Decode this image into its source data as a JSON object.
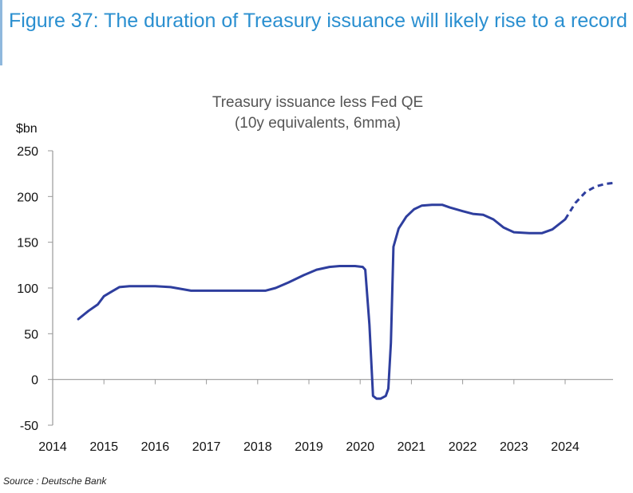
{
  "header": {
    "title": "Figure 37: The duration of Treasury issuance will likely rise to a record"
  },
  "chart_data": {
    "type": "line",
    "title_lines": [
      "Treasury issuance less Fed QE",
      "(10y equivalents, 6mma)"
    ],
    "ylabel": "$bn",
    "xlabel": "",
    "ylim": [
      -50,
      250
    ],
    "yticks": [
      250,
      200,
      150,
      100,
      50,
      0,
      -50
    ],
    "xlim": [
      2014,
      2025.05
    ],
    "xticks": [
      2014,
      2015,
      2016,
      2017,
      2018,
      2019,
      2020,
      2021,
      2022,
      2023,
      2024
    ],
    "grid": false,
    "series": [
      {
        "name": "Treasury issuance less Fed QE",
        "style": "solid",
        "color": "#2e3e9e",
        "points": [
          [
            2014.5,
            66
          ],
          [
            2014.7,
            75
          ],
          [
            2014.88,
            82
          ],
          [
            2015.0,
            91
          ],
          [
            2015.15,
            96
          ],
          [
            2015.3,
            101
          ],
          [
            2015.5,
            102
          ],
          [
            2016.0,
            102
          ],
          [
            2016.3,
            101
          ],
          [
            2016.5,
            99
          ],
          [
            2016.7,
            97
          ],
          [
            2017.0,
            97
          ],
          [
            2017.5,
            97
          ],
          [
            2018.0,
            97
          ],
          [
            2018.15,
            97
          ],
          [
            2018.35,
            100
          ],
          [
            2018.6,
            106
          ],
          [
            2018.9,
            114
          ],
          [
            2019.15,
            120
          ],
          [
            2019.4,
            123
          ],
          [
            2019.6,
            124
          ],
          [
            2019.9,
            124
          ],
          [
            2020.05,
            123
          ],
          [
            2020.1,
            120
          ],
          [
            2020.18,
            60
          ],
          [
            2020.25,
            -18
          ],
          [
            2020.32,
            -21
          ],
          [
            2020.4,
            -21
          ],
          [
            2020.5,
            -18
          ],
          [
            2020.55,
            -10
          ],
          [
            2020.6,
            40
          ],
          [
            2020.65,
            145
          ],
          [
            2020.75,
            165
          ],
          [
            2020.9,
            178
          ],
          [
            2021.05,
            186
          ],
          [
            2021.2,
            190
          ],
          [
            2021.4,
            191
          ],
          [
            2021.6,
            191
          ],
          [
            2021.75,
            188
          ],
          [
            2022.0,
            184
          ],
          [
            2022.2,
            181
          ],
          [
            2022.4,
            180
          ],
          [
            2022.6,
            175
          ],
          [
            2022.8,
            166
          ],
          [
            2023.0,
            161
          ],
          [
            2023.3,
            160
          ],
          [
            2023.55,
            160
          ],
          [
            2023.75,
            164
          ],
          [
            2024.0,
            175
          ]
        ]
      },
      {
        "name": "Projection",
        "style": "dashed",
        "color": "#2e3e9e",
        "points": [
          [
            2024.0,
            175
          ],
          [
            2024.2,
            193
          ],
          [
            2024.4,
            205
          ],
          [
            2024.6,
            211
          ],
          [
            2024.8,
            214
          ],
          [
            2025.0,
            215
          ]
        ]
      }
    ]
  },
  "footer": {
    "source": "Source : Deutsche Bank"
  }
}
